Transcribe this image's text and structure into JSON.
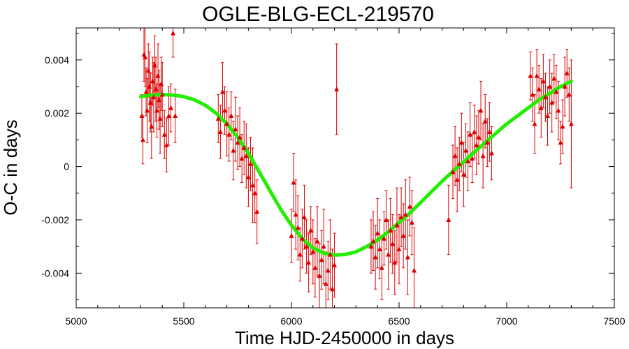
{
  "chart_data": {
    "type": "scatter",
    "title": "OGLE-BLG-ECL-219570",
    "xlabel": "Time HJD-2450000 in days",
    "ylabel": "O-C in days",
    "xlim": [
      5000,
      7500
    ],
    "ylim": [
      -0.0053,
      0.0052
    ],
    "xticks": [
      {
        "value": 5000,
        "label": "5000"
      },
      {
        "value": 5500,
        "label": "5500"
      },
      {
        "value": 6000,
        "label": "6000"
      },
      {
        "value": 6500,
        "label": "6500"
      },
      {
        "value": 7000,
        "label": "7000"
      },
      {
        "value": 7500,
        "label": "7500"
      }
    ],
    "yticks": [
      {
        "value": -0.004,
        "label": "-0.004"
      },
      {
        "value": -0.002,
        "label": "-0.002"
      },
      {
        "value": 0,
        "label": "0"
      },
      {
        "value": 0.002,
        "label": "0.002"
      },
      {
        "value": 0.004,
        "label": "0.004"
      }
    ],
    "grid": false,
    "colors": {
      "points": "#dd0000",
      "fit": "#22ee00",
      "axes": "#000000"
    },
    "series": [
      {
        "kind": "points_with_errorbars",
        "marker": "triangle",
        "x": [
          5305,
          5310,
          5315,
          5320,
          5325,
          5330,
          5335,
          5340,
          5345,
          5350,
          5355,
          5360,
          5365,
          5370,
          5375,
          5380,
          5385,
          5390,
          5395,
          5400,
          5410,
          5420,
          5430,
          5440,
          5450,
          5460,
          5660,
          5670,
          5680,
          5690,
          5700,
          5710,
          5720,
          5730,
          5740,
          5750,
          5760,
          5770,
          5780,
          5790,
          5800,
          5810,
          5820,
          5830,
          5840,
          6000,
          6010,
          6020,
          6030,
          6040,
          6050,
          6060,
          6070,
          6080,
          6090,
          6100,
          6110,
          6120,
          6130,
          6140,
          6150,
          6160,
          6170,
          6180,
          6190,
          6200,
          6210,
          6370,
          6380,
          6390,
          6400,
          6410,
          6420,
          6430,
          6440,
          6450,
          6460,
          6470,
          6480,
          6490,
          6500,
          6510,
          6520,
          6530,
          6540,
          6550,
          6560,
          6570,
          6730,
          6750,
          6760,
          6770,
          6780,
          6790,
          6800,
          6810,
          6820,
          6830,
          6840,
          6850,
          6860,
          6870,
          6880,
          6890,
          6900,
          6910,
          6920,
          6930,
          7110,
          7120,
          7130,
          7140,
          7150,
          7160,
          7170,
          7180,
          7190,
          7200,
          7210,
          7220,
          7230,
          7240,
          7250,
          7260,
          7270,
          7280,
          7290,
          7300
        ],
        "y": [
          0.0019,
          0.001,
          0.0042,
          0.0041,
          0.0028,
          0.0021,
          0.0036,
          0.003,
          0.0024,
          0.0015,
          0.0032,
          0.0026,
          0.0038,
          0.0029,
          0.0021,
          0.0034,
          0.0025,
          0.0018,
          0.0031,
          0.0027,
          0.0012,
          0.0008,
          0.0019,
          0.0022,
          0.005,
          0.0019,
          0.0018,
          0.0013,
          0.0028,
          0.0021,
          0.0016,
          0.0012,
          0.0019,
          0.0006,
          0.0014,
          0.0009,
          0.0011,
          0.0003,
          0.0007,
          0.0004,
          -0.0004,
          0.0001,
          -0.0007,
          -0.001,
          -0.0017,
          -0.0026,
          -0.0006,
          -0.0018,
          -0.0023,
          -0.0033,
          -0.0027,
          -0.0019,
          -0.003,
          -0.0036,
          -0.0024,
          -0.0032,
          -0.0038,
          -0.0028,
          -0.0041,
          -0.0035,
          -0.003,
          -0.0044,
          -0.0039,
          -0.0033,
          -0.0046,
          -0.0037,
          0.0029,
          -0.003,
          -0.0028,
          -0.0034,
          -0.0025,
          -0.0031,
          -0.0038,
          -0.0027,
          -0.002,
          -0.0033,
          -0.0024,
          -0.0029,
          -0.0036,
          -0.0022,
          -0.0031,
          -0.0019,
          -0.0026,
          -0.0018,
          -0.0034,
          -0.0015,
          -0.0021,
          -0.0039,
          -0.002,
          -0.0002,
          0.0004,
          -0.0005,
          0.0001,
          0.0009,
          -0.0003,
          0.0006,
          0.0002,
          0.0012,
          0.0003,
          0.0013,
          0.0008,
          0.0011,
          0.0021,
          0.0004,
          0.0017,
          0.0009,
          0.0013,
          0.0005,
          0.0034,
          0.0027,
          0.0016,
          0.0034,
          0.0029,
          0.0022,
          0.0032,
          0.0026,
          0.0019,
          0.003,
          0.0024,
          0.0033,
          0.0028,
          0.0021,
          0.0009,
          0.0015,
          0.003,
          0.0035,
          0.0027,
          0.0016
        ],
        "err": [
          0.0008,
          0.0009,
          0.001,
          0.0011,
          0.0009,
          0.0012,
          0.001,
          0.0013,
          0.0011,
          0.0012,
          0.0009,
          0.0013,
          0.0011,
          0.0012,
          0.001,
          0.0012,
          0.0011,
          0.0013,
          0.001,
          0.0012,
          0.0009,
          0.001,
          0.0011,
          0.0009,
          0.0009,
          0.001,
          0.0009,
          0.001,
          0.0011,
          0.0009,
          0.0012,
          0.001,
          0.0009,
          0.0011,
          0.0012,
          0.001,
          0.0011,
          0.0009,
          0.001,
          0.0012,
          0.0011,
          0.001,
          0.0014,
          0.0011,
          0.0012,
          0.001,
          0.0011,
          0.0013,
          0.0012,
          0.001,
          0.0011,
          0.0012,
          0.001,
          0.0011,
          0.0009,
          0.0012,
          0.0011,
          0.0013,
          0.0012,
          0.0011,
          0.0014,
          0.0012,
          0.0011,
          0.0013,
          0.0015,
          0.0012,
          0.0017,
          0.001,
          0.0011,
          0.0012,
          0.0013,
          0.0011,
          0.0012,
          0.001,
          0.0011,
          0.0013,
          0.0012,
          0.0011,
          0.0012,
          0.0014,
          0.0013,
          0.0011,
          0.0012,
          0.0013,
          0.0014,
          0.0011,
          0.0012,
          0.0016,
          0.0013,
          0.001,
          0.0011,
          0.0012,
          0.001,
          0.0011,
          0.0012,
          0.001,
          0.0011,
          0.0012,
          0.0009,
          0.001,
          0.0011,
          0.001,
          0.0011,
          0.0012,
          0.001,
          0.0009,
          0.0011,
          0.001,
          0.0009,
          0.001,
          0.0011,
          0.001,
          0.0009,
          0.0011,
          0.001,
          0.0009,
          0.0011,
          0.001,
          0.0011,
          0.0009,
          0.001,
          0.0011,
          0.0008,
          0.001,
          0.0011,
          0.0009,
          0.001,
          0.0024
        ]
      },
      {
        "kind": "fit_curve",
        "x": [
          5300,
          5350,
          5400,
          5450,
          5500,
          5550,
          5600,
          5650,
          5700,
          5750,
          5800,
          5850,
          5900,
          5950,
          6000,
          6050,
          6100,
          6150,
          6200,
          6250,
          6300,
          6350,
          6400,
          6450,
          6500,
          6550,
          6600,
          6650,
          6700,
          6750,
          6800,
          6850,
          6900,
          6950,
          7000,
          7050,
          7100,
          7150,
          7200,
          7250,
          7300
        ],
        "y": [
          0.00262,
          0.00268,
          0.0027,
          0.00268,
          0.00262,
          0.0025,
          0.0023,
          0.002,
          0.0016,
          0.0011,
          0.0005,
          -0.0002,
          -0.0009,
          -0.0016,
          -0.0022,
          -0.0027,
          -0.00305,
          -0.00325,
          -0.00332,
          -0.0033,
          -0.0032,
          -0.003,
          -0.00275,
          -0.00245,
          -0.0021,
          -0.00175,
          -0.00135,
          -0.00095,
          -0.00055,
          -0.00018,
          0.00018,
          0.00055,
          0.0009,
          0.00125,
          0.0016,
          0.0019,
          0.0022,
          0.0025,
          0.00275,
          0.003,
          0.0032
        ]
      }
    ]
  }
}
